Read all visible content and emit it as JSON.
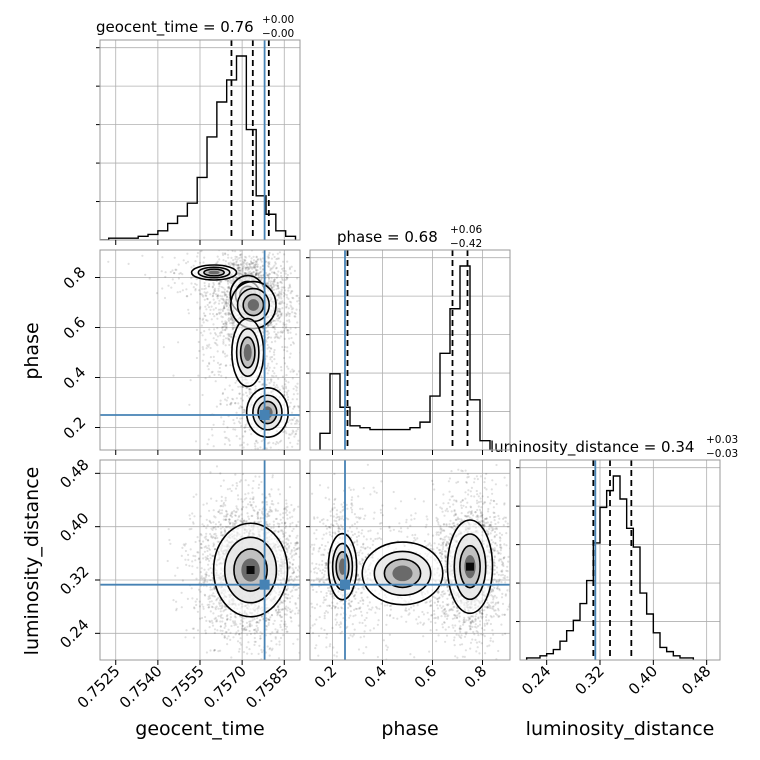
{
  "chart_data": {
    "type": "corner",
    "parameters": [
      "geocent_time",
      "phase",
      "luminosity_distance"
    ],
    "truths": {
      "geocent_time": 0.7578,
      "phase": 0.25,
      "luminosity_distance": 0.313
    },
    "titles": [
      {
        "param": "geocent_time",
        "text": "geocent_time = 0.76",
        "plus": "+0.00",
        "minus": "−0.00"
      },
      {
        "param": "phase",
        "text": "phase = 0.68",
        "plus": "+0.06",
        "minus": "−0.42"
      },
      {
        "param": "luminosity_distance",
        "text": "luminosity_distance = 0.34",
        "plus": "+0.03",
        "minus": "−0.03"
      }
    ],
    "ranges": {
      "geocent_time": [
        0.75194,
        0.75906
      ],
      "phase": [
        0.11,
        0.91
      ],
      "luminosity_distance": [
        0.2,
        0.5
      ]
    },
    "ticks": {
      "geocent_time": [
        "0.7525",
        "0.7540",
        "0.7555",
        "0.7570",
        "0.7585"
      ],
      "phase": [
        "0.2",
        "0.4",
        "0.6",
        "0.8"
      ],
      "luminosity_distance": [
        "0.24",
        "0.32",
        "0.40",
        "0.48"
      ]
    },
    "histograms": {
      "geocent_time": {
        "edges": [
          0.7519,
          0.75225,
          0.7526,
          0.75295,
          0.7533,
          0.75365,
          0.754,
          0.75435,
          0.7547,
          0.75505,
          0.7554,
          0.75575,
          0.7561,
          0.75645,
          0.7568,
          0.75715,
          0.7575,
          0.75785,
          0.7582,
          0.75855,
          0.7589
        ],
        "counts": [
          0,
          0.01,
          0.01,
          0.01,
          0.02,
          0.03,
          0.05,
          0.09,
          0.13,
          0.2,
          0.34,
          0.56,
          0.75,
          0.87,
          1.0,
          0.6,
          0.24,
          0.14,
          0.05,
          0.02
        ],
        "quantiles": [
          0.75662,
          0.75738,
          0.75795
        ]
      },
      "phase": {
        "edges": [
          0.15,
          0.19,
          0.23,
          0.27,
          0.31,
          0.35,
          0.39,
          0.43,
          0.47,
          0.51,
          0.55,
          0.59,
          0.63,
          0.67,
          0.71,
          0.75,
          0.79,
          0.83
        ],
        "counts": [
          0.09,
          0.41,
          0.23,
          0.13,
          0.12,
          0.11,
          0.11,
          0.11,
          0.11,
          0.12,
          0.15,
          0.29,
          0.52,
          0.76,
          0.99,
          0.27,
          0.05
        ],
        "quantiles": [
          0.26,
          0.68,
          0.74
        ]
      },
      "luminosity_distance": {
        "edges": [
          0.21,
          0.22,
          0.23,
          0.24,
          0.25,
          0.26,
          0.27,
          0.28,
          0.29,
          0.3,
          0.31,
          0.32,
          0.33,
          0.34,
          0.35,
          0.36,
          0.37,
          0.38,
          0.39,
          0.4,
          0.41,
          0.42,
          0.43,
          0.44,
          0.45,
          0.46
        ],
        "counts": [
          0.01,
          0.01,
          0.02,
          0.03,
          0.05,
          0.09,
          0.14,
          0.19,
          0.27,
          0.38,
          0.56,
          0.73,
          0.81,
          0.88,
          0.77,
          0.63,
          0.54,
          0.32,
          0.22,
          0.13,
          0.06,
          0.04,
          0.02,
          0.01,
          0.01
        ],
        "quantiles": [
          0.31,
          0.335,
          0.367
        ]
      }
    },
    "blobs": {
      "phase_vs_geocent_time": [
        {
          "x": 0.7579,
          "y": 0.26,
          "sx": 0.0006,
          "sy": 0.08,
          "w": 0.18
        },
        {
          "x": 0.7572,
          "y": 0.73,
          "sx": 0.0004,
          "sy": 0.05,
          "w": 0.4
        },
        {
          "x": 0.7574,
          "y": 0.69,
          "sx": 0.0006,
          "sy": 0.07,
          "w": 0.25
        },
        {
          "x": 0.7572,
          "y": 0.5,
          "sx": 0.0005,
          "sy": 0.12,
          "w": 0.12
        },
        {
          "x": 0.756,
          "y": 0.82,
          "sx": 0.0008,
          "sy": 0.03,
          "w": 0.05
        }
      ],
      "luminosity_distance_vs_geocent_time": [
        {
          "x": 0.7573,
          "y": 0.335,
          "sx": 0.0006,
          "sy": 0.032,
          "w": 1.0
        }
      ],
      "luminosity_distance_vs_phase": [
        {
          "x": 0.75,
          "y": 0.34,
          "sx": 0.045,
          "sy": 0.035,
          "w": 0.8
        },
        {
          "x": 0.24,
          "y": 0.34,
          "sx": 0.04,
          "sy": 0.035,
          "w": 0.3
        },
        {
          "x": 0.48,
          "y": 0.33,
          "sx": 0.12,
          "sy": 0.035,
          "w": 0.25
        }
      ]
    },
    "colors": {
      "truth": "#4682b4",
      "hist": "#000000",
      "grid": "#b0b0b0",
      "contour": "#000000"
    },
    "grid": true
  }
}
